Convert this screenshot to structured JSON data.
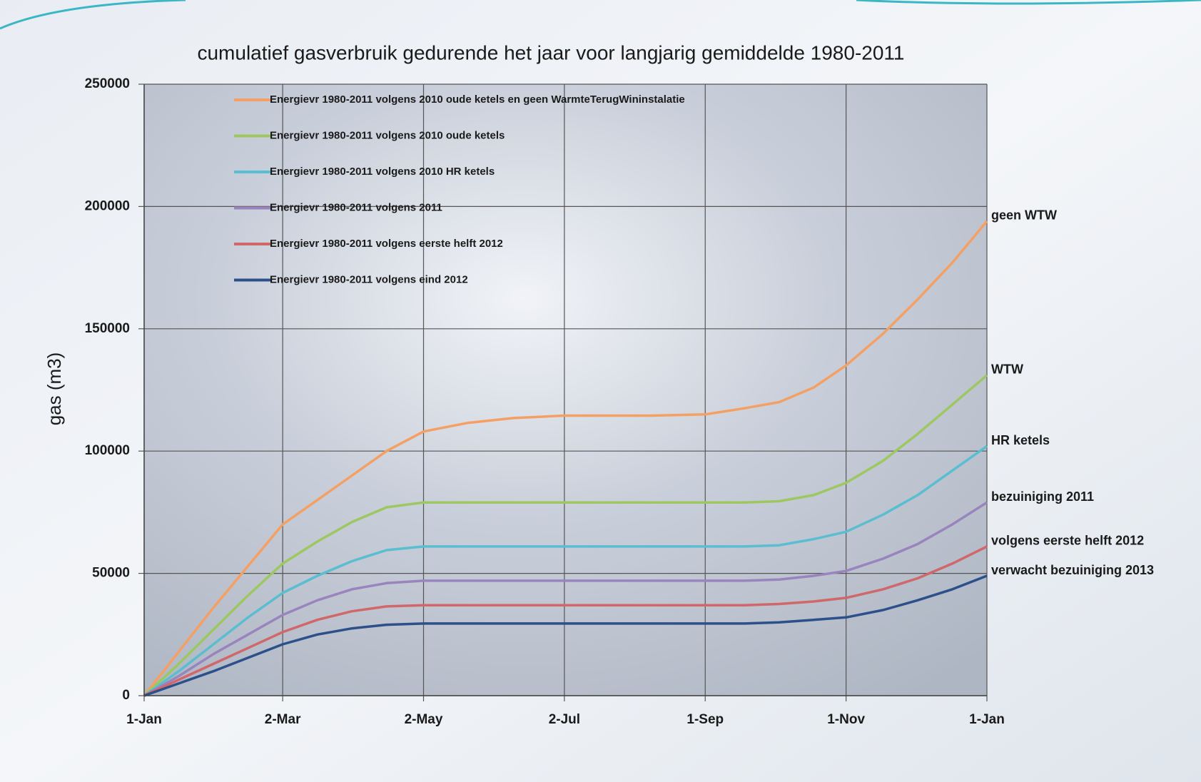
{
  "chart_data": {
    "type": "line",
    "title": "cumulatief gasverbruik gedurende het jaar voor langjarig gemiddelde 1980-2011",
    "y_label": "gas   (m3)",
    "x": [
      0,
      15,
      30,
      45,
      60,
      75,
      90,
      105,
      121,
      140,
      160,
      182,
      200,
      220,
      243,
      260,
      275,
      290,
      304,
      320,
      335,
      350,
      365
    ],
    "xlim": [
      0,
      365
    ],
    "xticks": [
      {
        "value": 0,
        "label": "1-Jan"
      },
      {
        "value": 60,
        "label": "2-Mar"
      },
      {
        "value": 121,
        "label": "2-May"
      },
      {
        "value": 182,
        "label": "2-Jul"
      },
      {
        "value": 243,
        "label": "1-Sep"
      },
      {
        "value": 304,
        "label": "1-Nov"
      },
      {
        "value": 365,
        "label": "1-Jan"
      }
    ],
    "ylim": [
      0,
      250000
    ],
    "yticks": [
      0,
      50000,
      100000,
      150000,
      200000,
      250000
    ],
    "grid": true,
    "legend": "upper left",
    "series": [
      {
        "name": "Energievr  1980-2011 volgens 2010 oude ketels en geen WarmteTerugWininstalatie",
        "end_label": "geen WTW",
        "color": "#f4a064",
        "values": [
          0,
          18000,
          36000,
          53000,
          70000,
          80000,
          90000,
          100000,
          108000,
          111500,
          113500,
          114500,
          114500,
          114500,
          115000,
          117500,
          120000,
          126000,
          135000,
          148000,
          162000,
          177000,
          194000
        ]
      },
      {
        "name": "Energievr  1980-2011 volgens 2010 oude ketels",
        "end_label": "WTW",
        "color": "#9dc760",
        "values": [
          0,
          13000,
          27000,
          41000,
          54000,
          63000,
          71000,
          77000,
          79000,
          79000,
          79000,
          79000,
          79000,
          79000,
          79000,
          79000,
          79500,
          82000,
          87000,
          96000,
          107000,
          119000,
          131000
        ]
      },
      {
        "name": "Energievr 1980-2011 volgens 2010 HR ketels",
        "end_label": "HR ketels",
        "color": "#5bbdd0",
        "values": [
          0,
          10000,
          21000,
          32000,
          42000,
          49000,
          55000,
          59500,
          61000,
          61000,
          61000,
          61000,
          61000,
          61000,
          61000,
          61000,
          61500,
          64000,
          67000,
          74000,
          82000,
          92000,
          102000
        ]
      },
      {
        "name": "Energievr 1980-2011 volgens 2011",
        "end_label": "bezuiniging 2011",
        "color": "#9a84bd",
        "values": [
          0,
          8000,
          17000,
          25000,
          33000,
          39000,
          43500,
          46000,
          47000,
          47000,
          47000,
          47000,
          47000,
          47000,
          47000,
          47000,
          47500,
          49000,
          51000,
          56000,
          62000,
          70000,
          79000
        ]
      },
      {
        "name": "Energievr 1980-2011 volgens  eerste helft 2012",
        "end_label": "volgens eerste helft 2012",
        "color": "#d0676a",
        "values": [
          0,
          6500,
          13000,
          19500,
          26000,
          31000,
          34500,
          36500,
          37000,
          37000,
          37000,
          37000,
          37000,
          37000,
          37000,
          37000,
          37500,
          38500,
          40000,
          43500,
          48000,
          54000,
          61000
        ]
      },
      {
        "name": "Energievr 1980-2011 volgens eind 2012",
        "end_label": "verwacht bezuiniging 2013",
        "color": "#2d4f8a",
        "values": [
          0,
          5000,
          10000,
          15500,
          21000,
          25000,
          27500,
          29000,
          29500,
          29500,
          29500,
          29500,
          29500,
          29500,
          29500,
          29500,
          30000,
          31000,
          32000,
          35000,
          39000,
          43500,
          49000
        ]
      }
    ]
  }
}
